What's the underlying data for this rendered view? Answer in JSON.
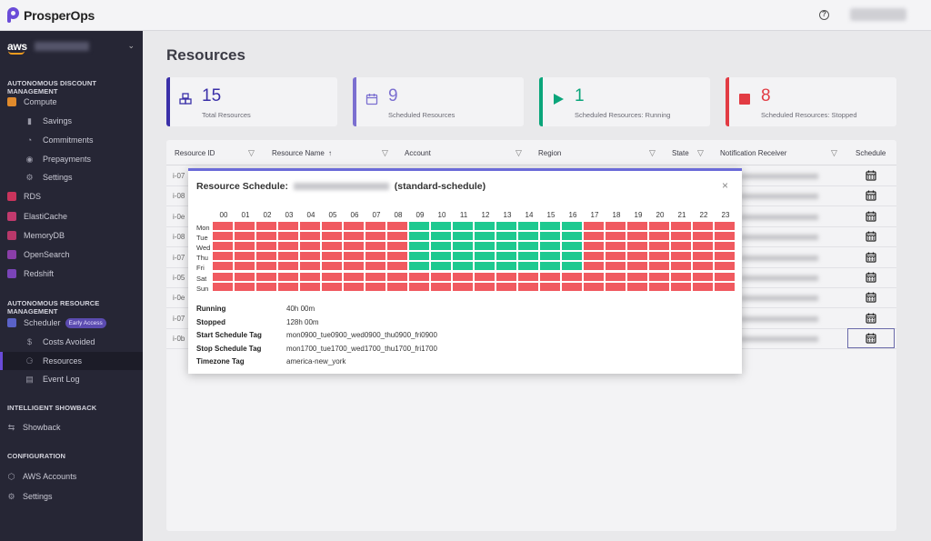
{
  "app": {
    "name": "ProsperOps"
  },
  "topbar": {
    "help_label": "?"
  },
  "sidebar": {
    "cloud": "aws",
    "sections": [
      {
        "title": "AUTONOMOUS DISCOUNT MANAGEMENT"
      },
      {
        "title": "AUTONOMOUS RESOURCE MANAGEMENT"
      },
      {
        "title": "INTELLIGENT SHOWBACK"
      },
      {
        "title": "CONFIGURATION"
      }
    ],
    "items": {
      "compute": "Compute",
      "savings": "Savings",
      "commitments": "Commitments",
      "prepayments": "Prepayments",
      "settings_sub": "Settings",
      "rds": "RDS",
      "elasticache": "ElastiCache",
      "memorydb": "MemoryDB",
      "opensearch": "OpenSearch",
      "redshift": "Redshift",
      "scheduler": "Scheduler",
      "early_access": "Early Access",
      "costs_avoided": "Costs Avoided",
      "resources": "Resources",
      "event_log": "Event Log",
      "showback": "Showback",
      "aws_accounts": "AWS Accounts",
      "settings": "Settings"
    }
  },
  "page": {
    "title": "Resources",
    "cards": [
      {
        "value": "15",
        "caption": "Total Resources",
        "color": "#3a2fa8"
      },
      {
        "value": "9",
        "caption": "Scheduled Resources",
        "color": "#7b6fd0"
      },
      {
        "value": "1",
        "caption": "Scheduled Resources: Running",
        "color": "#0aa57a"
      },
      {
        "value": "8",
        "caption": "Scheduled Resources: Stopped",
        "color": "#e23b43"
      }
    ],
    "table": {
      "columns": [
        "Resource ID",
        "Resource Name",
        "Account",
        "Region",
        "State",
        "Notification Receiver",
        "Schedule"
      ],
      "row_ids": [
        "i-07",
        "i-08",
        "i-0e",
        "i-08",
        "i-07",
        "i-05",
        "i-0e",
        "i-07",
        "i-0b"
      ]
    }
  },
  "modal": {
    "title_prefix": "Resource Schedule:",
    "title_suffix": "(standard-schedule)",
    "close": "×",
    "hours": [
      "00",
      "01",
      "02",
      "03",
      "04",
      "05",
      "06",
      "07",
      "08",
      "09",
      "10",
      "11",
      "12",
      "13",
      "14",
      "15",
      "16",
      "17",
      "18",
      "19",
      "20",
      "21",
      "22",
      "23"
    ],
    "days": [
      "Mon",
      "Tue",
      "Wed",
      "Thu",
      "Fri",
      "Sat",
      "Sun"
    ],
    "running_color": "#1ec990",
    "stopped_color": "#f05a60",
    "running_days": [
      "Mon",
      "Tue",
      "Wed",
      "Thu",
      "Fri"
    ],
    "running_hours": [
      "09",
      "10",
      "11",
      "12",
      "13",
      "14",
      "15",
      "16"
    ],
    "info": [
      {
        "key": "Running",
        "value": "40h 00m"
      },
      {
        "key": "Stopped",
        "value": "128h 00m"
      },
      {
        "key": "Start Schedule Tag",
        "value": "mon0900_tue0900_wed0900_thu0900_fri0900"
      },
      {
        "key": "Stop Schedule Tag",
        "value": "mon1700_tue1700_wed1700_thu1700_fri1700"
      },
      {
        "key": "Timezone Tag",
        "value": "america-new_york"
      }
    ]
  }
}
